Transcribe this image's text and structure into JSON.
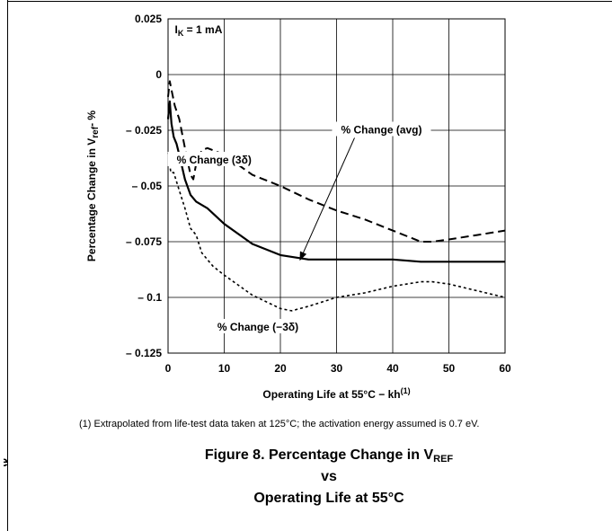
{
  "chart_data": {
    "type": "line",
    "title": "",
    "xlabel": "Operating Life at 55°C − kh",
    "xlabel_sup": "(1)",
    "ylabel_main": "Percentage Change in V",
    "ylabel_sub": "ref",
    "ylabel_tail": "- %",
    "xlim": [
      0,
      60
    ],
    "ylim": [
      -0.125,
      0.025
    ],
    "x_ticks": [
      0,
      10,
      20,
      30,
      40,
      50,
      60
    ],
    "x_tick_labels": [
      "0",
      "10",
      "20",
      "30",
      "40",
      "50",
      "60"
    ],
    "y_ticks": [
      0.025,
      0,
      -0.025,
      -0.05,
      -0.075,
      -0.1,
      -0.125
    ],
    "y_tick_labels": [
      "0.025",
      "0",
      "– 0.025",
      "– 0.05",
      "– 0.075",
      "– 0.1",
      "– 0.125"
    ],
    "grid": true,
    "condition": {
      "main": "I",
      "sub": "K",
      "tail": " = 1 mA"
    },
    "series": [
      {
        "name": "% Change  (avg)",
        "style": "solid",
        "x": [
          0,
          0.3,
          0.6,
          1,
          1.5,
          2,
          3,
          4,
          5,
          7,
          10,
          15,
          20,
          25,
          30,
          40,
          45,
          50,
          55,
          60
        ],
        "y": [
          -0.02,
          -0.012,
          -0.022,
          -0.028,
          -0.031,
          -0.036,
          -0.047,
          -0.054,
          -0.057,
          -0.06,
          -0.067,
          -0.076,
          -0.081,
          -0.083,
          -0.083,
          -0.083,
          -0.084,
          -0.084,
          -0.084,
          -0.084
        ]
      },
      {
        "name": "% Change  (3δ)",
        "style": "dashed",
        "x": [
          0,
          0.3,
          0.7,
          1.2,
          2,
          3,
          4,
          4.5,
          5,
          6,
          7,
          10,
          15,
          20,
          25,
          30,
          35,
          40,
          45,
          47,
          50,
          55,
          60
        ],
        "y": [
          -0.01,
          -0.003,
          -0.008,
          -0.014,
          -0.02,
          -0.033,
          -0.045,
          -0.047,
          -0.04,
          -0.034,
          -0.033,
          -0.036,
          -0.045,
          -0.05,
          -0.056,
          -0.061,
          -0.065,
          -0.07,
          -0.075,
          -0.075,
          -0.074,
          -0.072,
          -0.07
        ]
      },
      {
        "name": "% Change  (−3δ)",
        "style": "dotted",
        "x": [
          0,
          0.5,
          1,
          2,
          3,
          4,
          5,
          6,
          8,
          10,
          15,
          20,
          22,
          25,
          30,
          35,
          40,
          45,
          47,
          50,
          55,
          60
        ],
        "y": [
          -0.035,
          -0.044,
          -0.044,
          -0.052,
          -0.06,
          -0.069,
          -0.072,
          -0.08,
          -0.086,
          -0.09,
          -0.099,
          -0.105,
          -0.106,
          -0.104,
          -0.1,
          -0.098,
          -0.095,
          -0.093,
          -0.093,
          -0.094,
          -0.097,
          -0.1
        ]
      }
    ],
    "annotations": [
      {
        "label": "% Change  (avg)",
        "x": 38,
        "y": -0.026,
        "arrow_to": [
          23.5,
          -0.0832
        ]
      },
      {
        "label": "% Change  (3δ)",
        "x": 8.2,
        "y": -0.0395
      },
      {
        "label": "% Change  (−3δ)",
        "x": 16,
        "y": -0.1145
      }
    ]
  },
  "footnote": "(1) Extrapolated from life-test data taken at 125°C; the activation energy assumed is 0.7 eV.",
  "caption": {
    "line1_main": "Figure 8. Percentage Change in V",
    "line1_sub": "REF",
    "line2": "vs",
    "line3": "Operating Life at 55°C"
  },
  "stray_glyph": "e"
}
